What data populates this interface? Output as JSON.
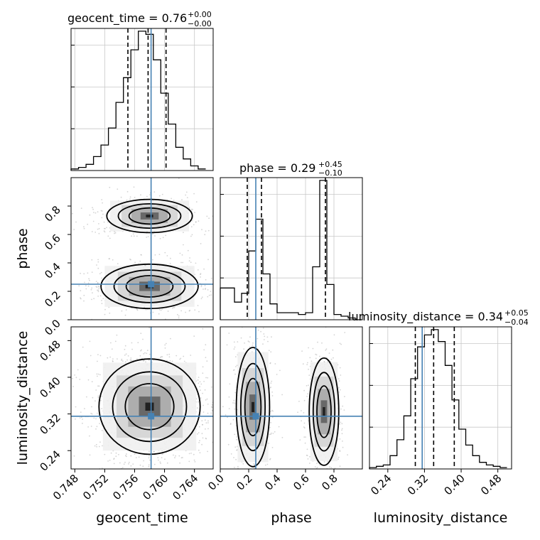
{
  "chart_data": {
    "type": "corner",
    "parameters": [
      "geocent_time",
      "phase",
      "luminosity_distance"
    ],
    "truths": {
      "geocent_time": 0.7582,
      "phase": 0.25,
      "luminosity_distance": 0.315
    },
    "truth_color": "#4682b4",
    "ranges": {
      "geocent_time": [
        0.7475,
        0.7665
      ],
      "phase": [
        0.0,
        1.0
      ],
      "luminosity_distance": [
        0.2,
        0.51
      ]
    },
    "ticks": {
      "geocent_time": {
        "values": [
          0.748,
          0.752,
          0.756,
          0.76,
          0.764
        ],
        "labels": [
          "0.748",
          "0.752",
          "0.756",
          "0.760",
          "0.764"
        ]
      },
      "phase_x": {
        "values": [
          0.0,
          0.2,
          0.4,
          0.6,
          0.8
        ],
        "labels": [
          "0.0",
          "0.2",
          "0.4",
          "0.6",
          "0.8"
        ]
      },
      "phase_y": {
        "values": [
          0.0,
          0.2,
          0.4,
          0.6,
          0.8
        ],
        "labels": [
          "0.0",
          "0.2",
          "0.4",
          "0.6",
          "0.8"
        ]
      },
      "luminosity_distance": {
        "values": [
          0.24,
          0.32,
          0.4,
          0.48
        ],
        "labels": [
          "0.24",
          "0.32",
          "0.40",
          "0.48"
        ]
      }
    },
    "titles": {
      "geocent_time": {
        "base": "geocent_time = 0.76",
        "plus": "+0.00",
        "minus": "−0.00"
      },
      "phase": {
        "base": "phase = 0.29",
        "plus": "+0.45",
        "minus": "−0.10"
      },
      "luminosity_distance": {
        "base": "luminosity_distance = 0.34",
        "plus": "+0.05",
        "minus": "−0.04"
      }
    },
    "quantiles": {
      "geocent_time": [
        0.7551,
        0.7578,
        0.7602
      ],
      "phase": [
        0.19,
        0.29,
        0.74
      ],
      "luminosity_distance": [
        0.3,
        0.34,
        0.385
      ]
    },
    "hist_geocent_time": {
      "edges": [
        0.7475,
        0.7485,
        0.7495,
        0.7505,
        0.7515,
        0.7525,
        0.7535,
        0.7545,
        0.7555,
        0.7565,
        0.7575,
        0.7585,
        0.7595,
        0.7605,
        0.7615,
        0.7625,
        0.7635,
        0.7645,
        0.7655
      ],
      "counts": [
        2,
        4,
        8,
        18,
        33,
        55,
        88,
        120,
        156,
        180,
        176,
        143,
        100,
        60,
        30,
        15,
        6,
        2
      ]
    },
    "hist_phase": {
      "edges": [
        0.0,
        0.05,
        0.1,
        0.15,
        0.2,
        0.25,
        0.3,
        0.35,
        0.4,
        0.45,
        0.5,
        0.55,
        0.6,
        0.65,
        0.7,
        0.75,
        0.8,
        0.85,
        0.9,
        0.95,
        1.0
      ],
      "counts": [
        18,
        18,
        10,
        15,
        39,
        57,
        26,
        9,
        4,
        4,
        4,
        3,
        4,
        30,
        79,
        20,
        3,
        2,
        1,
        0
      ]
    },
    "hist_luminosity_distance": {
      "edges": [
        0.2,
        0.215,
        0.23,
        0.245,
        0.26,
        0.275,
        0.29,
        0.305,
        0.32,
        0.335,
        0.35,
        0.365,
        0.38,
        0.395,
        0.41,
        0.425,
        0.44,
        0.455,
        0.47,
        0.485,
        0.5
      ],
      "counts": [
        1,
        2,
        3,
        10,
        22,
        40,
        68,
        92,
        101,
        105,
        96,
        78,
        52,
        30,
        18,
        10,
        5,
        3,
        2,
        1
      ]
    },
    "blobs": {
      "phase_vs_geocent_time": [
        {
          "cx": 0.758,
          "cy": 0.73,
          "sx": 0.0022,
          "sy": 0.045,
          "w": 1.0
        },
        {
          "cx": 0.758,
          "cy": 0.235,
          "sx": 0.0025,
          "sy": 0.06,
          "w": 1.25
        }
      ],
      "luminosity_distance_vs_geocent_time": [
        {
          "cx": 0.758,
          "cy": 0.336,
          "sx": 0.0026,
          "sy": 0.04,
          "w": 1.0
        }
      ],
      "luminosity_distance_vs_phase": [
        {
          "cx": 0.23,
          "cy": 0.335,
          "sx": 0.045,
          "sy": 0.05,
          "w": 1.2
        },
        {
          "cx": 0.73,
          "cy": 0.325,
          "sx": 0.04,
          "sy": 0.045,
          "w": 1.0
        }
      ]
    }
  }
}
